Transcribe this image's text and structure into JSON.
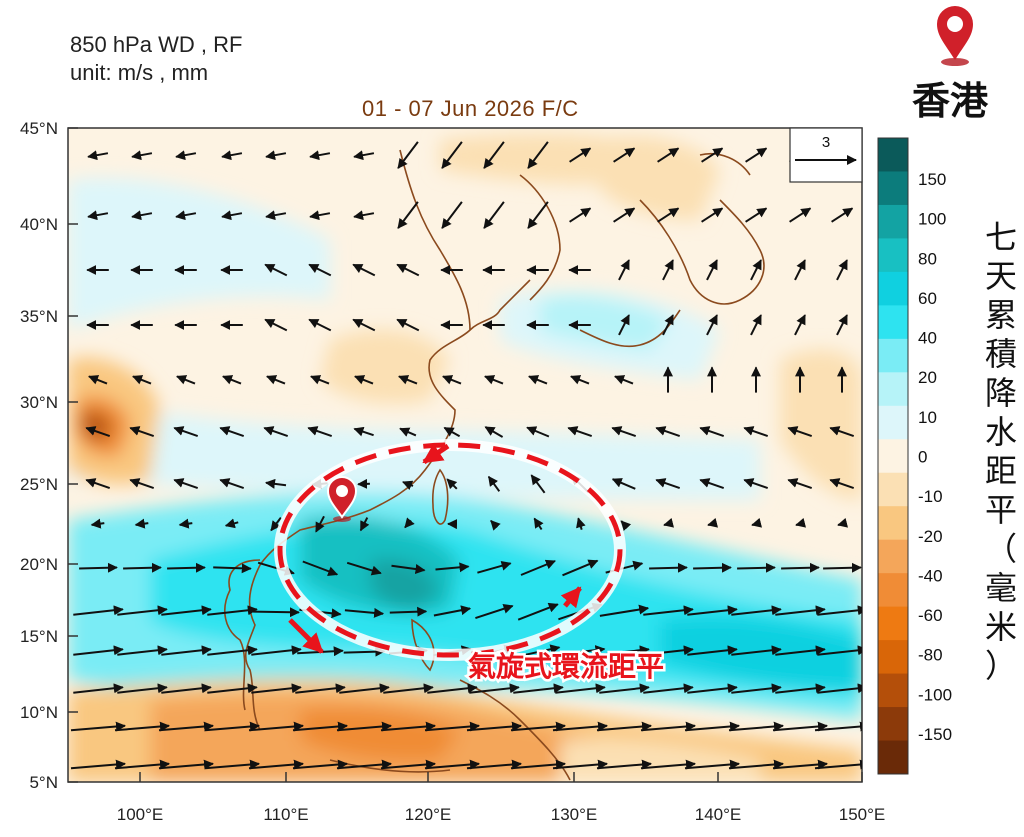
{
  "header": {
    "line1": "850 hPa WD , RF",
    "line2": "unit: m/s , mm"
  },
  "map_title": "01 - 07 Jun 2026  F/C",
  "location": {
    "name": "香港",
    "lon": 114.2,
    "lat": 22.3,
    "pin_color": "#d0202a"
  },
  "annotation": {
    "text": "氣旋式環流距平",
    "color": "#e8141c"
  },
  "reference_vector": {
    "label": "3",
    "unit": "m/s"
  },
  "colorbar": {
    "title_chars": [
      "七",
      "天",
      "累",
      "積",
      "降",
      "水",
      "距",
      "平",
      "（",
      "毫",
      "米",
      "）"
    ],
    "colors": [
      "#0b5a5a",
      "#0c7c7c",
      "#13a3a3",
      "#18c0c2",
      "#10d0e0",
      "#2ee3f0",
      "#7aecf5",
      "#b6f3f8",
      "#ddf6fa",
      "#fdf3e3",
      "#fbe0b4",
      "#f9c780",
      "#f4a65a",
      "#f08c36",
      "#ee7a12",
      "#d96608",
      "#b44f0a",
      "#8c3a0a",
      "#6a2a08"
    ],
    "labels": [
      "150",
      "100",
      "80",
      "60",
      "40",
      "20",
      "10",
      "0",
      "-10",
      "-20",
      "-40",
      "-60",
      "-80",
      "-100",
      "-150"
    ]
  },
  "axes": {
    "lon_ticks": [
      "100°E",
      "110°E",
      "120°E",
      "130°E",
      "140°E",
      "150°E"
    ],
    "lat_ticks": [
      "45°N",
      "40°N",
      "35°N",
      "30°N",
      "25°N",
      "20°N",
      "15°N",
      "10°N",
      "5°N"
    ]
  },
  "legend_colors": {
    "coast": "#8b4a1e",
    "arrow": "#111111"
  }
}
